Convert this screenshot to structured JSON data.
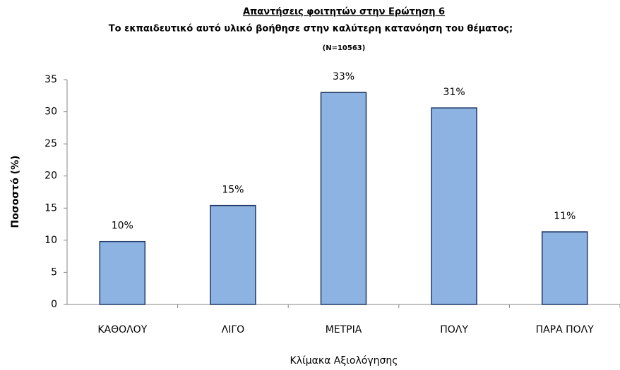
{
  "chart_data": {
    "type": "bar",
    "title": "Απαντήσεις φοιτητών στην Ερώτηση 6",
    "subtitle": "Το εκπαιδευτικό αυτό υλικό βοήθησε στην καλύτερη κατανόηση του θέματος;",
    "note": "(N=10563)",
    "x_label": "Κλίμακα Αξιολόγησης",
    "y_label": "Ποσοστό (%)",
    "categories": [
      "ΚΑΘΟΛΟΥ",
      "ΛΙΓΟ",
      "ΜΕΤΡΙΑ",
      "ΠΟΛΥ",
      "ΠΑΡΑ ΠΟΛΥ"
    ],
    "values": [
      9.8,
      15.4,
      33,
      30.6,
      11.3
    ],
    "value_labels": [
      "10%",
      "15%",
      "33%",
      "31%",
      "11%"
    ],
    "color": "#8db3e2",
    "ylim": [
      0,
      35
    ],
    "yticks": [
      0,
      5,
      10,
      15,
      20,
      25,
      30,
      35
    ],
    "grid": false
  }
}
